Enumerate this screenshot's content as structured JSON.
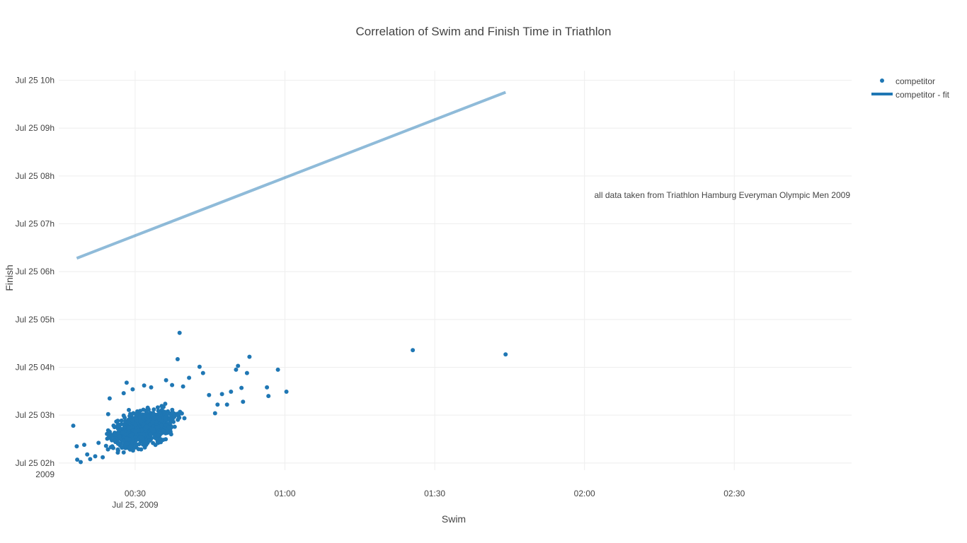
{
  "chart_data": {
    "type": "scatter",
    "title": "Correlation of Swim and Finish Time in Triathlon",
    "xlabel": "Swim",
    "ylabel": "Finish",
    "annotation": "all data taken from Triathlon Hamburg Everyman Olympic Men 2009",
    "x_axis": {
      "unit": "minutes after 00:00 on Jul 25, 2009",
      "range": [
        14.7,
        173.5
      ],
      "ticks": [
        {
          "value": 30,
          "label": "00:30",
          "sublabel": "Jul 25, 2009"
        },
        {
          "value": 60,
          "label": "01:00",
          "sublabel": ""
        },
        {
          "value": 90,
          "label": "01:30",
          "sublabel": ""
        },
        {
          "value": 120,
          "label": "02:00",
          "sublabel": ""
        },
        {
          "value": 150,
          "label": "02:30",
          "sublabel": ""
        }
      ]
    },
    "y_axis": {
      "unit": "hours after 00:00 on Jul 25, 2009",
      "range": [
        1.85,
        10.2
      ],
      "ticks": [
        {
          "value": 2,
          "label": "Jul 25 02h",
          "sublabel": "2009"
        },
        {
          "value": 3,
          "label": "Jul 25 03h",
          "sublabel": ""
        },
        {
          "value": 4,
          "label": "Jul 25 04h",
          "sublabel": ""
        },
        {
          "value": 5,
          "label": "Jul 25 05h",
          "sublabel": ""
        },
        {
          "value": 6,
          "label": "Jul 25 06h",
          "sublabel": ""
        },
        {
          "value": 7,
          "label": "Jul 25 07h",
          "sublabel": ""
        },
        {
          "value": 8,
          "label": "Jul 25 08h",
          "sublabel": ""
        },
        {
          "value": 9,
          "label": "Jul 25 09h",
          "sublabel": ""
        },
        {
          "value": 10,
          "label": "Jul 25 10h",
          "sublabel": ""
        }
      ]
    },
    "grid": true,
    "legend_position": "top-right",
    "series": [
      {
        "name": "competitor",
        "mode": "markers",
        "color": "#1f77b4",
        "cluster": {
          "count": 1000,
          "x_mean": 31.5,
          "x_sd": 4.0,
          "y_mean": 2.73,
          "y_sd": 0.22,
          "slope_h_per_min": 0.033,
          "x_min": 18.5,
          "x_max": 45,
          "y_min": 2.05,
          "y_max": 3.7
        },
        "points": [
          {
            "x": 17.6,
            "y": 2.78
          },
          {
            "x": 18.3,
            "y": 2.35
          },
          {
            "x": 18.4,
            "y": 2.07
          },
          {
            "x": 19.1,
            "y": 2.02
          },
          {
            "x": 19.8,
            "y": 2.38
          },
          {
            "x": 20.4,
            "y": 2.18
          },
          {
            "x": 21.0,
            "y": 2.08
          },
          {
            "x": 22.0,
            "y": 2.14
          },
          {
            "x": 23.5,
            "y": 2.12
          },
          {
            "x": 24.6,
            "y": 3.02
          },
          {
            "x": 24.9,
            "y": 3.35
          },
          {
            "x": 27.7,
            "y": 3.46
          },
          {
            "x": 28.3,
            "y": 3.68
          },
          {
            "x": 29.5,
            "y": 3.54
          },
          {
            "x": 31.8,
            "y": 3.62
          },
          {
            "x": 33.2,
            "y": 3.58
          },
          {
            "x": 36.2,
            "y": 3.73
          },
          {
            "x": 37.4,
            "y": 3.63
          },
          {
            "x": 38.5,
            "y": 4.17
          },
          {
            "x": 38.9,
            "y": 4.72
          },
          {
            "x": 39.6,
            "y": 3.6
          },
          {
            "x": 40.8,
            "y": 3.78
          },
          {
            "x": 42.9,
            "y": 4.01
          },
          {
            "x": 43.6,
            "y": 3.88
          },
          {
            "x": 44.8,
            "y": 3.42
          },
          {
            "x": 46.0,
            "y": 3.04
          },
          {
            "x": 46.5,
            "y": 3.22
          },
          {
            "x": 47.4,
            "y": 3.44
          },
          {
            "x": 48.4,
            "y": 3.22
          },
          {
            "x": 49.2,
            "y": 3.49
          },
          {
            "x": 50.2,
            "y": 3.95
          },
          {
            "x": 50.6,
            "y": 4.03
          },
          {
            "x": 51.3,
            "y": 3.57
          },
          {
            "x": 51.6,
            "y": 3.28
          },
          {
            "x": 52.4,
            "y": 3.88
          },
          {
            "x": 52.9,
            "y": 4.22
          },
          {
            "x": 56.4,
            "y": 3.58
          },
          {
            "x": 56.7,
            "y": 3.4
          },
          {
            "x": 58.6,
            "y": 3.95
          },
          {
            "x": 60.3,
            "y": 3.49
          },
          {
            "x": 85.6,
            "y": 4.36
          },
          {
            "x": 104.2,
            "y": 4.27
          }
        ]
      },
      {
        "name": "competitor - fit",
        "mode": "lines",
        "color": "#1f77b4",
        "opacity": 0.5,
        "x": [
          18.3,
          104.2
        ],
        "y": [
          6.28,
          9.75
        ]
      }
    ]
  }
}
